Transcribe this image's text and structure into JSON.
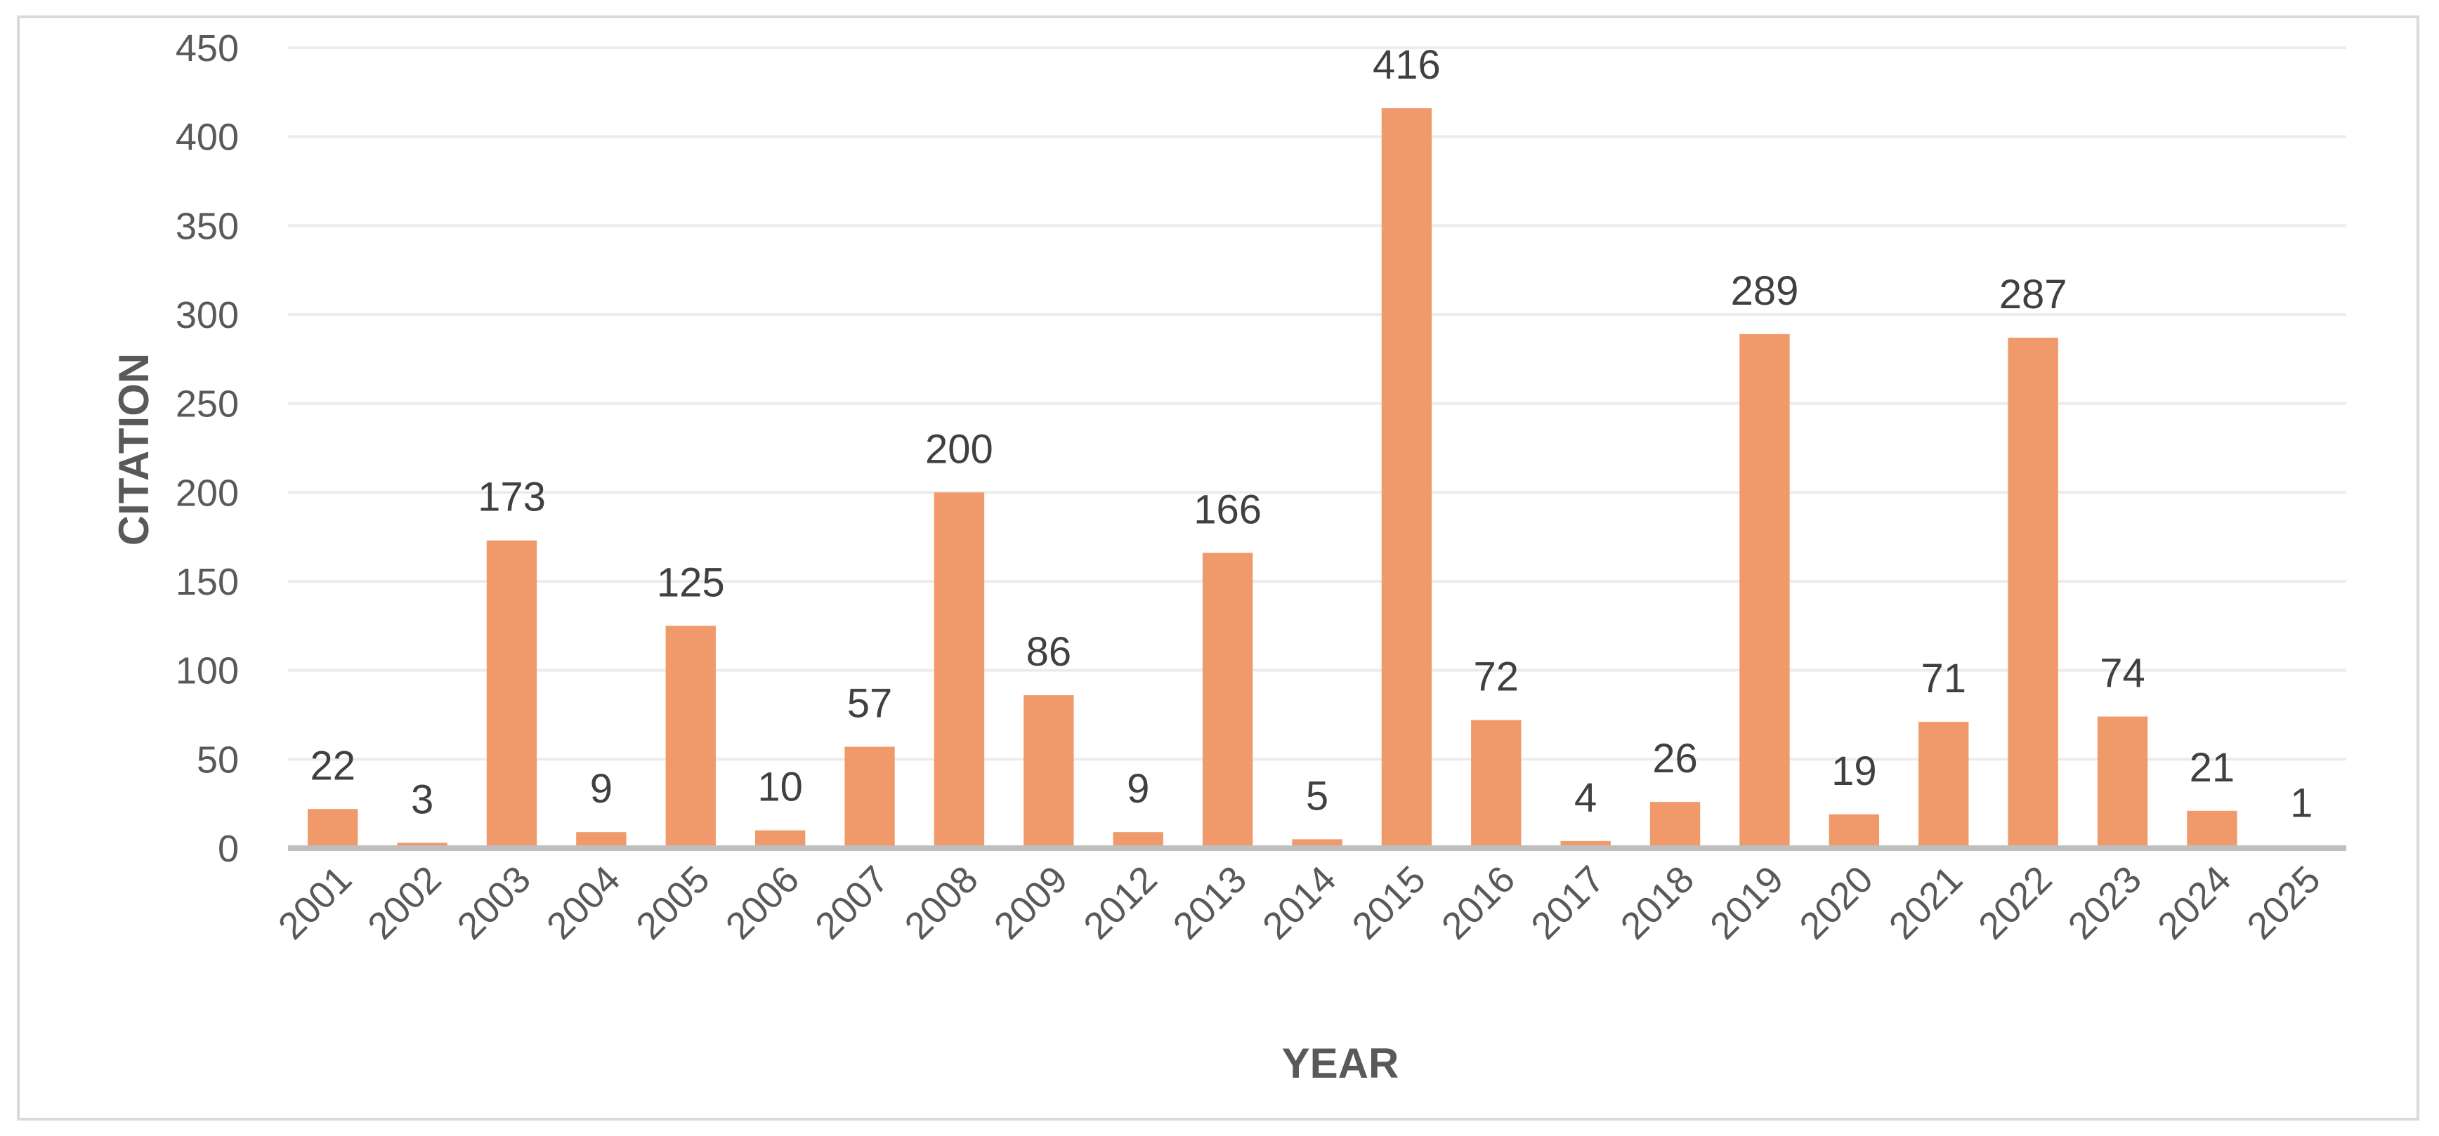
{
  "chart_data": {
    "type": "bar",
    "title": "",
    "xlabel": "YEAR",
    "ylabel": "CITATION",
    "ylim": [
      0,
      450
    ],
    "yticks": [
      0,
      50,
      100,
      150,
      200,
      250,
      300,
      350,
      400,
      450
    ],
    "grid": true,
    "legend": "none",
    "categories": [
      "2001",
      "2002",
      "2003",
      "2004",
      "2005",
      "2006",
      "2007",
      "2008",
      "2009",
      "2012",
      "2013",
      "2014",
      "2015",
      "2016",
      "2017",
      "2018",
      "2019",
      "2020",
      "2021",
      "2022",
      "2023",
      "2024",
      "2025"
    ],
    "values": [
      22,
      3,
      173,
      9,
      125,
      10,
      57,
      200,
      86,
      9,
      166,
      5,
      416,
      72,
      4,
      26,
      289,
      19,
      71,
      287,
      74,
      21,
      1
    ],
    "bar_color": "#f0996a",
    "grid_color": "#ececec",
    "axis_color": "#bfbfbf"
  }
}
